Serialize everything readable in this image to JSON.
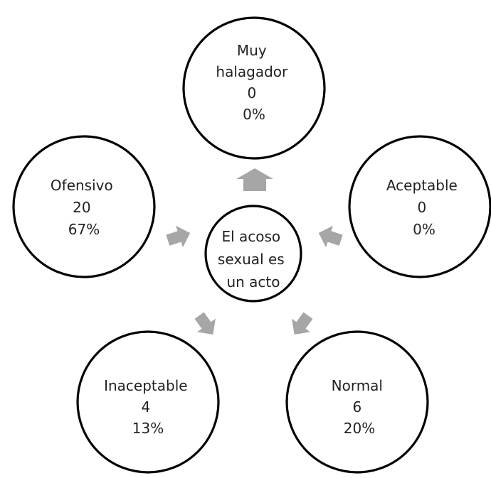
{
  "center": {
    "lines": [
      "El acoso",
      "sexual es",
      "un acto"
    ]
  },
  "nodes": [
    {
      "id": "muy-halagador",
      "label_lines": [
        "Muy",
        "halagador"
      ],
      "count": 0,
      "percent": "0%"
    },
    {
      "id": "aceptable",
      "label_lines": [
        "Aceptable"
      ],
      "count": 0,
      "percent": "0%"
    },
    {
      "id": "normal",
      "label_lines": [
        "Normal"
      ],
      "count": 6,
      "percent": "20%"
    },
    {
      "id": "inaceptable",
      "label_lines": [
        "Inaceptable"
      ],
      "count": 4,
      "percent": "13%"
    },
    {
      "id": "ofensivo",
      "label_lines": [
        "Ofensivo"
      ],
      "count": 20,
      "percent": "67%"
    }
  ],
  "colors": {
    "circle_stroke": "#000000",
    "arrow_fill": "#a6a6a6",
    "text": "#222222"
  }
}
